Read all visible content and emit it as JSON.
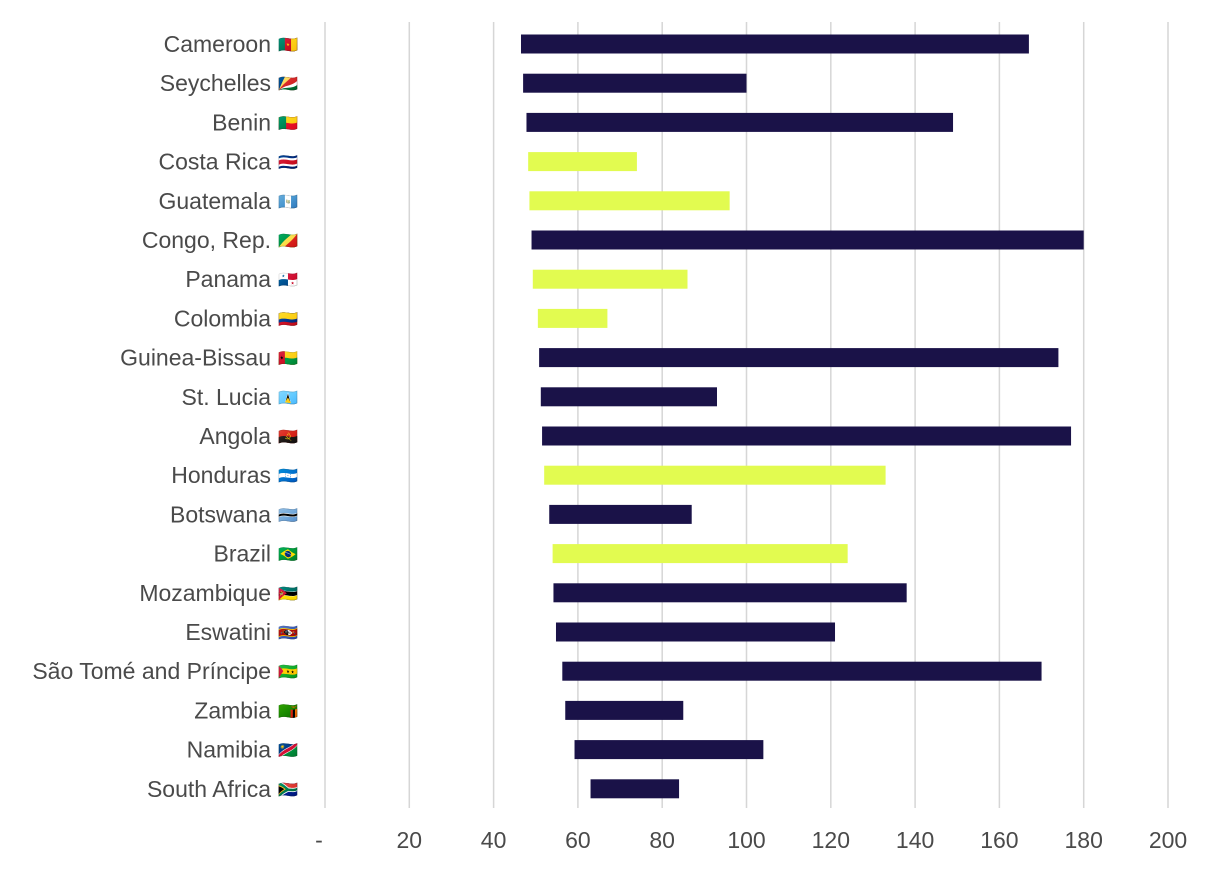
{
  "chart_data": {
    "type": "bar",
    "orientation": "horizontal",
    "bar_style": "floating-range",
    "categories": [
      "Cameroon",
      "Seychelles",
      "Benin",
      "Costa Rica",
      "Guatemala",
      "Congo, Rep.",
      "Panama",
      "Colombia",
      "Guinea-Bissau",
      "St. Lucia",
      "Angola",
      "Honduras",
      "Botswana",
      "Brazil",
      "Mozambique",
      "Eswatini",
      "São Tomé and Príncipe",
      "Zambia",
      "Namibia",
      "South Africa"
    ],
    "flags": [
      "🇨🇲",
      "🇸🇨",
      "🇧🇯",
      "🇨🇷",
      "🇬🇹",
      "🇨🇬",
      "🇵🇦",
      "🇨🇴",
      "🇬🇼",
      "🇱🇨",
      "🇦🇴",
      "🇭🇳",
      "🇧🇼",
      "🇧🇷",
      "🇲🇿",
      "🇸🇿",
      "🇸🇹",
      "🇿🇲",
      "🇳🇦",
      "🇿🇦"
    ],
    "start": [
      46.5,
      47.0,
      47.8,
      48.2,
      48.5,
      49.0,
      49.3,
      50.5,
      50.8,
      51.2,
      51.5,
      52.0,
      53.2,
      54.0,
      54.2,
      54.8,
      56.3,
      57.0,
      59.2,
      63.0
    ],
    "end": [
      167,
      100,
      149,
      74,
      96,
      180,
      86,
      67,
      174,
      93,
      177,
      133,
      87,
      124,
      138,
      121,
      170,
      85,
      104,
      84
    ],
    "highlight": [
      false,
      false,
      false,
      true,
      true,
      false,
      true,
      true,
      false,
      false,
      false,
      true,
      false,
      true,
      false,
      false,
      false,
      false,
      false,
      false
    ],
    "colors": {
      "default": "#1a1248",
      "highlight": "#e2fb50"
    },
    "xlim": [
      0,
      200
    ],
    "x_ticks": [
      0,
      20,
      40,
      60,
      80,
      100,
      120,
      140,
      160,
      180,
      200
    ],
    "x_tick_labels": [
      "-",
      "20",
      "40",
      "60",
      "80",
      "100",
      "120",
      "140",
      "160",
      "180",
      "200"
    ],
    "grid": true,
    "legend": "none"
  }
}
